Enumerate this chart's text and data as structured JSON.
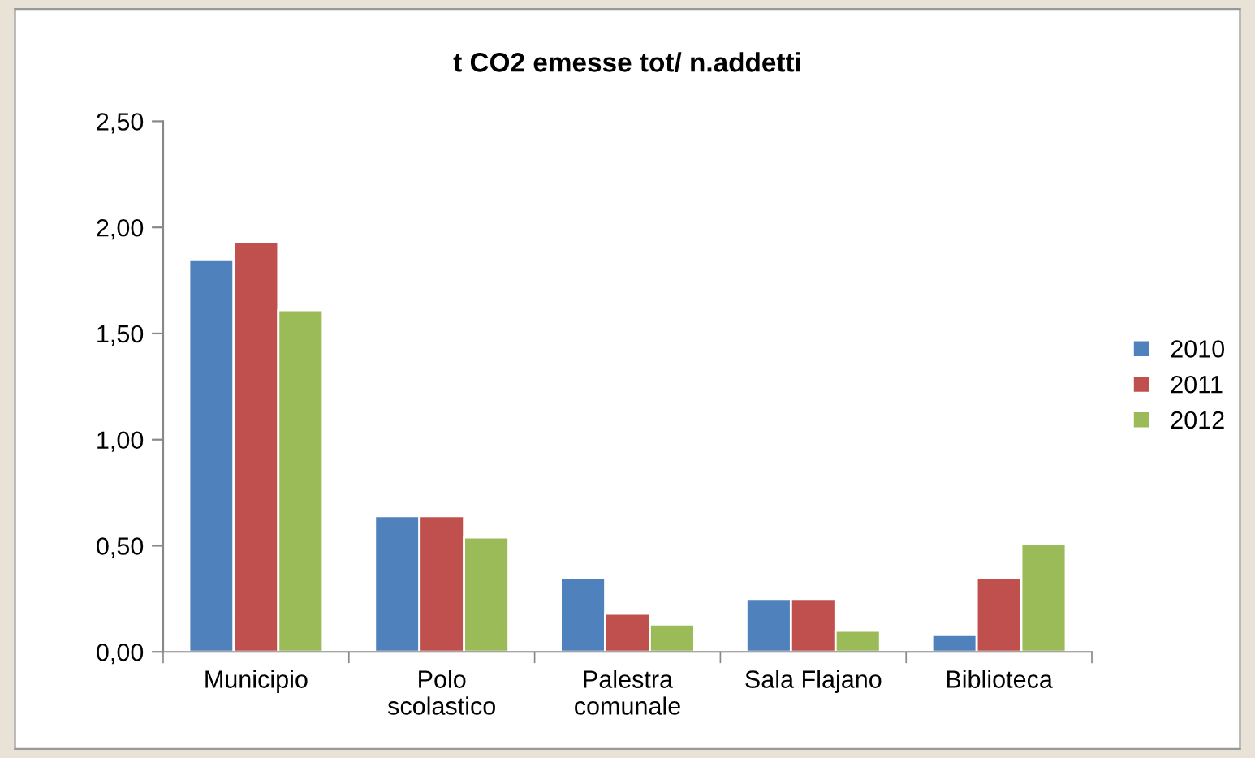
{
  "chart_data": {
    "type": "bar",
    "title": "t CO2 emesse tot/ n.addetti",
    "categories": [
      "Municipio",
      "Polo\nscolastico",
      "Palestra\ncomunale",
      "Sala Flajano",
      "Biblioteca"
    ],
    "series": [
      {
        "name": "2010",
        "color": "#4f81bd",
        "values": [
          1.85,
          0.64,
          0.35,
          0.25,
          0.08
        ]
      },
      {
        "name": "2011",
        "color": "#c0504d",
        "values": [
          1.93,
          0.64,
          0.18,
          0.25,
          0.35
        ]
      },
      {
        "name": "2012",
        "color": "#9bbb59",
        "values": [
          1.61,
          0.54,
          0.13,
          0.1,
          0.51
        ]
      }
    ],
    "ylim": [
      0,
      2.5
    ],
    "yticks": [
      {
        "value": 0,
        "label": "0,00"
      },
      {
        "value": 0.5,
        "label": "0,50"
      },
      {
        "value": 1.0,
        "label": "1,00"
      },
      {
        "value": 1.5,
        "label": "1,50"
      },
      {
        "value": 2.0,
        "label": "2,00"
      },
      {
        "value": 2.5,
        "label": "2,50"
      }
    ],
    "legend": "right",
    "grid": false
  }
}
